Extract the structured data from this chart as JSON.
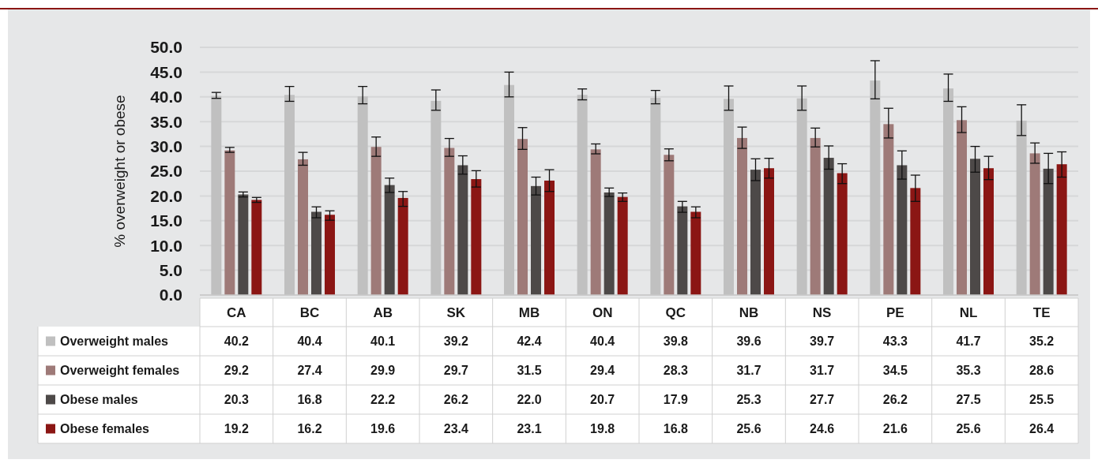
{
  "chart_data": {
    "type": "bar",
    "ylabel": "% overweight or obese",
    "categories": [
      "CA",
      "BC",
      "AB",
      "SK",
      "MB",
      "ON",
      "QC",
      "NB",
      "NS",
      "PE",
      "NL",
      "TE"
    ],
    "ylim": [
      0,
      50
    ],
    "yticks": [
      {
        "value": 0,
        "label": "0.0"
      },
      {
        "value": 5,
        "label": "5.0"
      },
      {
        "value": 10,
        "label": "10.0"
      },
      {
        "value": 15,
        "label": "15.0"
      },
      {
        "value": 20,
        "label": "20.0"
      },
      {
        "value": 25,
        "label": "25.0"
      },
      {
        "value": 30,
        "label": "30.0"
      },
      {
        "value": 35,
        "label": "35.0"
      },
      {
        "value": 40,
        "label": "40.0"
      },
      {
        "value": 45,
        "label": "45.0"
      },
      {
        "value": 50,
        "label": "50.0"
      }
    ],
    "grid": "y",
    "legend": "bottom",
    "series": [
      {
        "name": "Overweight males",
        "color": "#c0c0c0",
        "values": [
          40.2,
          40.4,
          40.1,
          39.2,
          42.4,
          40.4,
          39.8,
          39.6,
          39.7,
          43.3,
          41.7,
          35.2
        ],
        "value_labels": [
          "40.2",
          "40.4",
          "40.1",
          "39.2",
          "42.4",
          "40.4",
          "39.8",
          "39.6",
          "39.7",
          "43.3",
          "41.7",
          "35.2"
        ],
        "errors": [
          [
            39.7,
            40.9
          ],
          [
            39.1,
            42.1
          ],
          [
            38.6,
            42.1
          ],
          [
            37.3,
            41.4
          ],
          [
            40.0,
            45.0
          ],
          [
            39.4,
            41.6
          ],
          [
            38.6,
            41.3
          ],
          [
            37.3,
            42.2
          ],
          [
            37.3,
            42.2
          ],
          [
            39.6,
            47.3
          ],
          [
            39.1,
            44.6
          ],
          [
            32.2,
            38.4
          ]
        ]
      },
      {
        "name": "Overweight females",
        "color": "#9e7a78",
        "values": [
          29.2,
          27.4,
          29.9,
          29.7,
          31.5,
          29.4,
          28.3,
          31.7,
          31.7,
          34.5,
          35.3,
          28.6
        ],
        "value_labels": [
          "29.2",
          "27.4",
          "29.9",
          "29.7",
          "31.5",
          "29.4",
          "28.3",
          "31.7",
          "31.7",
          "34.5",
          "35.3",
          "28.6"
        ],
        "errors": [
          [
            28.8,
            29.8
          ],
          [
            26.2,
            28.8
          ],
          [
            28.0,
            31.9
          ],
          [
            28.0,
            31.6
          ],
          [
            29.4,
            33.8
          ],
          [
            28.5,
            30.5
          ],
          [
            27.1,
            29.5
          ],
          [
            29.6,
            33.9
          ],
          [
            29.9,
            33.7
          ],
          [
            31.7,
            37.7
          ],
          [
            32.8,
            38.0
          ],
          [
            26.6,
            30.7
          ]
        ]
      },
      {
        "name": "Obese males",
        "color": "#4d4948",
        "values": [
          20.3,
          16.8,
          22.2,
          26.2,
          22.0,
          20.7,
          17.9,
          25.3,
          27.7,
          26.2,
          27.5,
          25.5
        ],
        "value_labels": [
          "20.3",
          "16.8",
          "22.2",
          "26.2",
          "22.0",
          "20.7",
          "17.9",
          "25.3",
          "27.7",
          "26.2",
          "27.5",
          "25.5"
        ],
        "errors": [
          [
            19.8,
            20.8
          ],
          [
            15.6,
            17.8
          ],
          [
            20.7,
            23.6
          ],
          [
            24.4,
            28.1
          ],
          [
            20.2,
            23.8
          ],
          [
            19.9,
            21.6
          ],
          [
            16.7,
            18.9
          ],
          [
            23.1,
            27.5
          ],
          [
            25.4,
            30.1
          ],
          [
            23.4,
            29.1
          ],
          [
            24.8,
            30.0
          ],
          [
            22.5,
            28.6
          ]
        ]
      },
      {
        "name": "Obese females",
        "color": "#8b1614",
        "values": [
          19.2,
          16.2,
          19.6,
          23.4,
          23.1,
          19.8,
          16.8,
          25.6,
          24.6,
          21.6,
          25.6,
          26.4
        ],
        "value_labels": [
          "19.2",
          "16.2",
          "19.6",
          "23.4",
          "23.1",
          "19.8",
          "16.8",
          "25.6",
          "24.6",
          "21.6",
          "25.6",
          "26.4"
        ],
        "errors": [
          [
            18.7,
            19.7
          ],
          [
            15.1,
            17.0
          ],
          [
            17.9,
            20.9
          ],
          [
            21.8,
            25.1
          ],
          [
            20.9,
            25.3
          ],
          [
            18.9,
            20.6
          ],
          [
            15.6,
            17.8
          ],
          [
            23.6,
            27.6
          ],
          [
            22.5,
            26.5
          ],
          [
            18.9,
            24.2
          ],
          [
            23.3,
            28.0
          ],
          [
            23.8,
            28.9
          ]
        ]
      }
    ]
  }
}
